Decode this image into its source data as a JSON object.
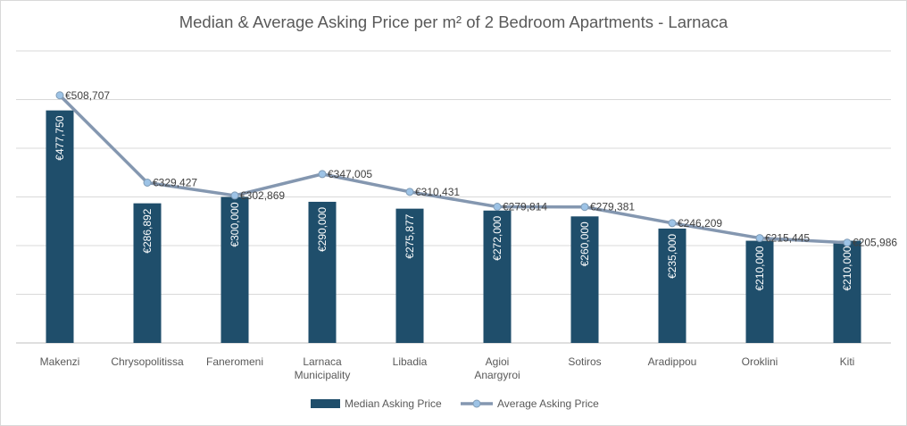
{
  "chart_data": {
    "type": "bar",
    "title": "Median & Average Asking Price per m² of 2 Bedroom Apartments - Larnaca",
    "categories": [
      "Makenzi",
      "Chrysopolitissa",
      "Faneromeni",
      "Larnaca Municipality",
      "Libadia",
      "Agioi Anargyroi",
      "Sotiros",
      "Aradippou",
      "Oroklini",
      "Kiti"
    ],
    "series": [
      {
        "name": "Median Asking Price",
        "type": "bar",
        "color": "#1f4e6b",
        "values": [
          477750,
          286892,
          300000,
          290000,
          275877,
          272000,
          260000,
          235000,
          210000,
          210000
        ],
        "labels": [
          "€477,750",
          "€286,892",
          "€300,000",
          "€290,000",
          "€275,877",
          "€272,000",
          "€260,000",
          "€235,000",
          "€210,000",
          "€210,000"
        ]
      },
      {
        "name": "Average Asking Price",
        "type": "line",
        "color": "#8497b0",
        "marker_color": "#9dc3e6",
        "values": [
          508707,
          329427,
          302869,
          347005,
          310431,
          279814,
          279381,
          246209,
          215445,
          205986
        ],
        "labels": [
          "€508,707",
          "€329,427",
          "€302,869",
          "€347,005",
          "€310,431",
          "€279,814",
          "€279,381",
          "€246,209",
          "€215,445",
          "€205,986"
        ]
      }
    ],
    "ylim": [
      0,
      600000
    ],
    "y_tick_labels_shown": false,
    "grid": true,
    "legend": "bottom"
  }
}
